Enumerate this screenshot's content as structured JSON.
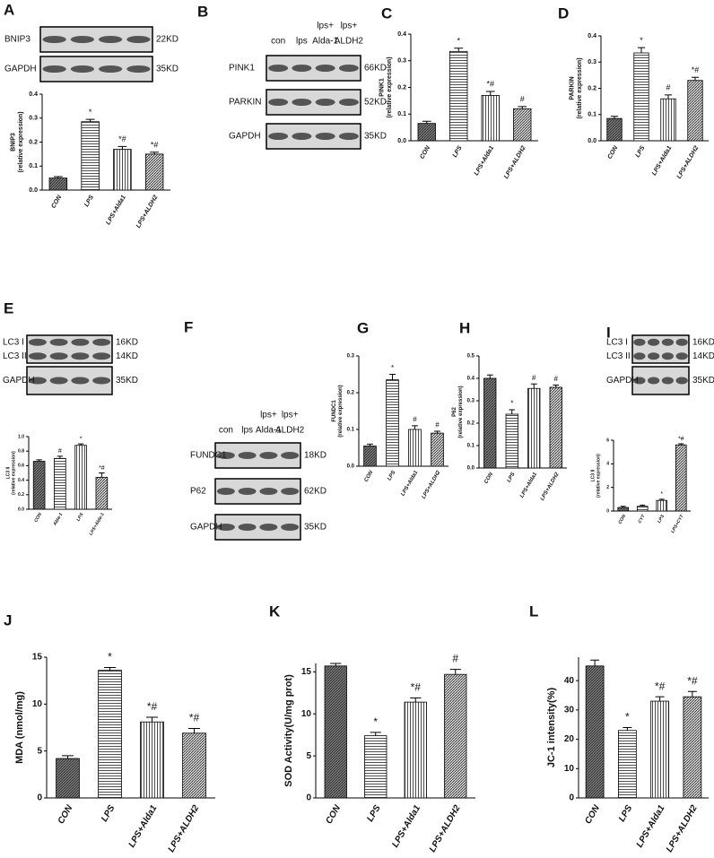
{
  "chart_data": [
    {
      "type": "bar",
      "panel": "A",
      "ylabel": [
        "BNIP3",
        "(relative expression)"
      ],
      "categories": [
        "CON",
        "LPS",
        "LPS+Alda1",
        "LPS+ALDH2"
      ],
      "values": [
        0.05,
        0.285,
        0.17,
        0.15
      ],
      "errors": [
        0.006,
        0.01,
        0.012,
        0.008
      ],
      "annotations": [
        null,
        "*",
        "*#",
        "*#"
      ],
      "ylim": [
        0,
        0.4
      ],
      "yticks": [
        {
          "value": 0,
          "label": "0.0"
        },
        0.1,
        0.2,
        0.3,
        0.4
      ]
    },
    {
      "type": "bar",
      "panel": "C",
      "ylabel": [
        "PINK1",
        "(relative expression)"
      ],
      "categories": [
        "CON",
        "LPS",
        "LPS+Alda1",
        "LPS+ALDH2"
      ],
      "values": [
        0.065,
        0.335,
        0.17,
        0.12
      ],
      "errors": [
        0.008,
        0.012,
        0.015,
        0.008
      ],
      "annotations": [
        null,
        "*",
        "*#",
        "#"
      ],
      "ylim": [
        0,
        0.4
      ],
      "yticks": [
        {
          "value": 0,
          "label": "0.0"
        },
        0.1,
        0.2,
        0.3,
        0.4
      ]
    },
    {
      "type": "bar",
      "panel": "D",
      "ylabel": [
        "PARKIN",
        "(relative expression)"
      ],
      "categories": [
        "CON",
        "LPS",
        "LPS+Alda1",
        "LPS+ALDH2"
      ],
      "values": [
        0.085,
        0.335,
        0.16,
        0.23
      ],
      "errors": [
        0.008,
        0.02,
        0.015,
        0.012
      ],
      "annotations": [
        null,
        "*",
        "#",
        "*#"
      ],
      "ylim": [
        0,
        0.4
      ],
      "yticks": [
        {
          "value": 0,
          "label": "0.0"
        },
        0.1,
        0.2,
        0.3,
        0.4
      ]
    },
    {
      "type": "bar",
      "panel": "E",
      "ylabel": [
        "LC3 II",
        "(relative expression)"
      ],
      "categories": [
        "CON",
        "Alda-1",
        "LPS",
        "LPS+Alda-1"
      ],
      "values": [
        0.66,
        0.7,
        0.88,
        0.44
      ],
      "errors": [
        0.02,
        0.03,
        0.02,
        0.06
      ],
      "annotations": [
        null,
        "#",
        "*",
        "*#"
      ],
      "ylim": [
        0,
        1
      ],
      "yticks": [
        {
          "value": 0,
          "label": "0.0"
        },
        0.2,
        0.4,
        0.6,
        0.8,
        {
          "value": 1,
          "label": "1.0"
        }
      ]
    },
    {
      "type": "bar",
      "panel": "G",
      "ylabel": [
        "FUNDC1",
        "(relative expression)"
      ],
      "categories": [
        "CON",
        "LPS",
        "LPS+Alda1",
        "LPS+ALDH2"
      ],
      "values": [
        0.055,
        0.235,
        0.1,
        0.09
      ],
      "errors": [
        0.005,
        0.015,
        0.01,
        0.005
      ],
      "annotations": [
        null,
        "*",
        "#",
        "#"
      ],
      "ylim": [
        0,
        0.3
      ],
      "yticks": [
        {
          "value": 0,
          "label": "0.0"
        },
        0.1,
        0.2,
        0.3
      ]
    },
    {
      "type": "bar",
      "panel": "H",
      "ylabel": [
        "P62",
        "(relative expression)"
      ],
      "categories": [
        "CON",
        "LPS",
        "LPS+Alda1",
        "LPS+ALDH2"
      ],
      "values": [
        0.4,
        0.24,
        0.355,
        0.36
      ],
      "errors": [
        0.015,
        0.02,
        0.02,
        0.01
      ],
      "annotations": [
        null,
        "*",
        "#",
        "#"
      ],
      "ylim": [
        0,
        0.5
      ],
      "yticks": [
        {
          "value": 0,
          "label": "0.0"
        },
        0.1,
        0.2,
        0.3,
        0.4,
        0.5
      ]
    },
    {
      "type": "bar",
      "panel": "I",
      "ylabel": [
        "LC3 II",
        "(relative expression)"
      ],
      "categories": [
        "CON",
        "CYT",
        "LPS",
        "LPS+CYT"
      ],
      "values": [
        0.3,
        0.4,
        0.9,
        5.6
      ],
      "errors": [
        0.1,
        0.1,
        0.1,
        0.1
      ],
      "annotations": [
        null,
        null,
        "*",
        "*#"
      ],
      "ylim": [
        0,
        6
      ],
      "yticks": [
        0,
        2,
        4,
        6
      ]
    },
    {
      "type": "bar",
      "panel": "J",
      "ylabel": "MDA (nmol/mg)",
      "categories": [
        "CON",
        "LPS",
        "LPS+Alda1",
        "LPS+ALDH2"
      ],
      "values": [
        4.2,
        13.6,
        8.1,
        6.9
      ],
      "errors": [
        0.3,
        0.3,
        0.5,
        0.5
      ],
      "annotations": [
        null,
        "*",
        "*#",
        "*#"
      ],
      "ylim": [
        0,
        15
      ],
      "yticks": [
        0,
        5,
        10,
        15
      ]
    },
    {
      "type": "bar",
      "panel": "K",
      "ylabel": "SOD Activity(U/mg prot)",
      "categories": [
        "CON",
        "LPS",
        "LPS+Alda1",
        "LPS+ALDH2"
      ],
      "values": [
        15.7,
        7.4,
        11.4,
        14.7
      ],
      "errors": [
        0.3,
        0.4,
        0.5,
        0.6
      ],
      "annotations": [
        null,
        "*",
        "*#",
        "#"
      ],
      "ylim": [
        0,
        16
      ],
      "yticks": [
        0,
        5,
        10,
        15
      ]
    },
    {
      "type": "bar",
      "panel": "L",
      "ylabel": "JC-1 intensity(%)",
      "categories": [
        "CON",
        "LPS",
        "LPS+Alda1",
        "LPS+ALDH2"
      ],
      "values": [
        45,
        23,
        33,
        34.5
      ],
      "errors": [
        2,
        1,
        1.5,
        1.8
      ],
      "annotations": [
        null,
        "*",
        "*#",
        "*#"
      ],
      "ylim": [
        0,
        48
      ],
      "yticks": [
        0,
        10,
        20,
        30,
        40
      ]
    }
  ],
  "blots": [
    {
      "lanes": [],
      "rows": [
        {
          "labels": [
            "BNIP3"
          ],
          "sizes": [
            "22KD"
          ]
        },
        {
          "labels": [
            "GAPDH"
          ],
          "sizes": [
            "35KD"
          ]
        }
      ]
    },
    {
      "panel": "B",
      "lanes": [
        [
          "con"
        ],
        [
          "lps"
        ],
        [
          "lps+",
          "Alda-1"
        ],
        [
          "lps+",
          "ALDH2"
        ]
      ],
      "rows": [
        {
          "labels": [
            "PINK1"
          ],
          "sizes": [
            "66KD"
          ]
        },
        {
          "labels": [
            "PARKIN"
          ],
          "sizes": [
            "52KD"
          ]
        },
        {
          "labels": [
            "GAPDH"
          ],
          "sizes": [
            "35KD"
          ]
        }
      ]
    },
    {
      "lanes": [],
      "rows": [
        {
          "labels": [
            "LC3 I",
            "LC3 II"
          ],
          "sizes": [
            "16KD",
            "14KD"
          ]
        },
        {
          "labels": [
            "GAPDH"
          ],
          "sizes": [
            "35KD"
          ]
        }
      ]
    },
    {
      "panel": "F",
      "lanes": [
        [
          "con"
        ],
        [
          "lps"
        ],
        [
          "lps+",
          "Alda-1"
        ],
        [
          "lps+",
          "ALDH2"
        ]
      ],
      "rows": [
        {
          "labels": [
            "FUNDC1"
          ],
          "sizes": [
            "18KD"
          ]
        },
        {
          "labels": [
            "P62"
          ],
          "sizes": [
            "62KD"
          ]
        },
        {
          "labels": [
            "GAPDH"
          ],
          "sizes": [
            "35KD"
          ]
        }
      ]
    },
    {
      "lanes": [],
      "rows": [
        {
          "labels": [
            "LC3 I",
            "LC3 II"
          ],
          "sizes": [
            "16KD",
            "14KD"
          ]
        },
        {
          "labels": [
            "GAPDH"
          ],
          "sizes": [
            "35KD"
          ]
        }
      ]
    }
  ]
}
